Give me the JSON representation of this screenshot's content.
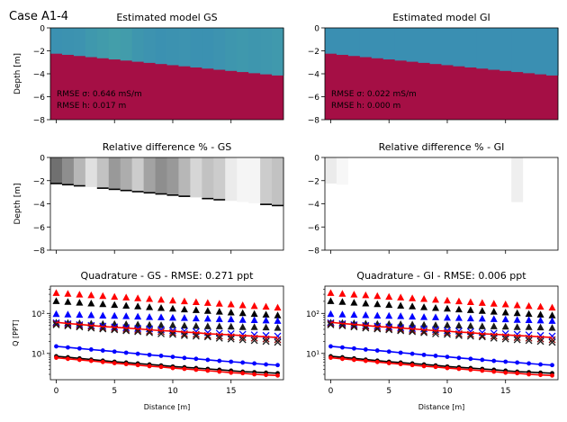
{
  "figure": {
    "label": "Case A1-4",
    "colors": {
      "bottom_layer": "#a50f45",
      "top_layer": "#3a8fb2",
      "top_layer_light": "#47a5a6",
      "series_red": "#ff0000",
      "series_black": "#000000",
      "series_blue": "#0000ff",
      "series_darkred": "#8b0000",
      "series_dark": "#1a1a1a"
    },
    "tick_labels": {
      "depth": [
        "0",
        "−2",
        "−4",
        "−6",
        "−8"
      ],
      "distance": [
        "0",
        "5",
        "10",
        "15"
      ],
      "q": [
        "10¹",
        "10²"
      ]
    }
  },
  "chart_data": [
    {
      "type": "heatmap",
      "title": "Estimated model GS",
      "ylabel": "Depth [m]",
      "xlabel": "",
      "ylim": [
        -8,
        0
      ],
      "xlim": [
        -0.5,
        19.5
      ],
      "boundary_depth": [
        -2.25,
        -2.35,
        -2.45,
        -2.55,
        -2.65,
        -2.75,
        -2.85,
        -2.95,
        -3.05,
        -3.15,
        -3.25,
        -3.35,
        -3.45,
        -3.55,
        -3.65,
        -3.75,
        -3.85,
        -3.95,
        -4.05,
        -4.15
      ],
      "top_shade": [
        0.1,
        0.15,
        0.2,
        0.4,
        0.55,
        0.7,
        0.6,
        0.3,
        0.2,
        0.1,
        0.15,
        0.2,
        0.1,
        0.1,
        0.2,
        0.3,
        0.4,
        0.3,
        0.35,
        0.45
      ],
      "annotations": [
        "RMSE σ: 0.646 mS/m",
        "RMSE h: 0.017 m"
      ]
    },
    {
      "type": "heatmap",
      "title": "Estimated model GI",
      "ylabel": "",
      "xlabel": "",
      "ylim": [
        -8,
        0
      ],
      "xlim": [
        -0.5,
        19.5
      ],
      "boundary_depth": [
        -2.25,
        -2.35,
        -2.45,
        -2.55,
        -2.65,
        -2.75,
        -2.85,
        -2.95,
        -3.05,
        -3.15,
        -3.25,
        -3.35,
        -3.45,
        -3.55,
        -3.65,
        -3.75,
        -3.85,
        -3.95,
        -4.05,
        -4.15
      ],
      "top_shade": [
        0,
        0,
        0,
        0,
        0,
        0,
        0,
        0,
        0,
        0,
        0,
        0,
        0,
        0,
        0,
        0,
        0,
        0,
        0,
        0
      ],
      "annotations": [
        "RMSE σ: 0.022 mS/m",
        "RMSE h: 0.000 m"
      ]
    },
    {
      "type": "heatmap",
      "title": "Relative difference % - GS",
      "ylabel": "Depth [m]",
      "xlabel": "",
      "ylim": [
        -8,
        0
      ],
      "xlim": [
        -0.5,
        19.5
      ],
      "boundary_depth": [
        -2.25,
        -2.35,
        -2.45,
        -2.55,
        -2.65,
        -2.75,
        -2.85,
        -2.95,
        -3.05,
        -3.15,
        -3.25,
        -3.35,
        -3.45,
        -3.55,
        -3.65,
        -3.75,
        -3.85,
        -3.95,
        -4.05,
        -4.15
      ],
      "diff_intensity": [
        0.7,
        0.55,
        0.35,
        0.15,
        0.3,
        0.5,
        0.4,
        0.25,
        0.45,
        0.55,
        0.5,
        0.35,
        0.2,
        0.3,
        0.25,
        0.1,
        0.05,
        0.05,
        0.25,
        0.3
      ]
    },
    {
      "type": "heatmap",
      "title": "Relative difference % - GI",
      "ylabel": "",
      "xlabel": "",
      "ylim": [
        -8,
        0
      ],
      "xlim": [
        -0.5,
        19.5
      ],
      "boundary_depth": [
        -2.25,
        -2.35,
        -2.45,
        -2.55,
        -2.65,
        -2.75,
        -2.85,
        -2.95,
        -3.05,
        -3.15,
        -3.25,
        -3.35,
        -3.45,
        -3.55,
        -3.65,
        -3.75,
        -3.85,
        -3.95,
        -4.05,
        -4.15
      ],
      "diff_intensity": [
        0.1,
        0.04,
        0,
        0,
        0,
        0,
        0,
        0,
        0,
        0,
        0,
        0,
        0,
        0,
        0,
        0,
        0.08,
        0,
        0,
        0
      ]
    },
    {
      "type": "scatter",
      "title": "Quadrature - GS - RMSE: 0.271 ppt",
      "xlabel": "Distance [m]",
      "ylabel": "Q [PPT]",
      "yscale": "log",
      "xlim": [
        -0.5,
        19.5
      ],
      "ylim": [
        2.2,
        480
      ],
      "x": [
        0,
        1,
        2,
        3,
        4,
        5,
        6,
        7,
        8,
        9,
        10,
        11,
        12,
        13,
        14,
        15,
        16,
        17,
        18,
        19
      ],
      "series": [
        {
          "marker": "triangle",
          "style": "markers",
          "color": "#ff0000",
          "values": [
            320,
            305,
            292,
            280,
            268,
            257,
            246,
            236,
            226,
            216,
            207,
            198,
            189,
            181,
            173,
            166,
            158,
            151,
            145,
            138
          ]
        },
        {
          "marker": "triangle",
          "style": "markers",
          "color": "#000000",
          "values": [
            200,
            191,
            183,
            175,
            168,
            161,
            154,
            148,
            141,
            135,
            130,
            124,
            119,
            114,
            109,
            104,
            100,
            96,
            92,
            88
          ]
        },
        {
          "marker": "triangle",
          "style": "markers",
          "color": "#0000ff",
          "values": [
            95,
            93,
            91,
            89,
            87,
            86,
            84,
            82,
            80,
            79,
            77,
            76,
            74,
            73,
            71,
            70,
            68,
            67,
            66,
            64
          ]
        },
        {
          "marker": "triangle",
          "style": "markers",
          "color": "#1a1a1a",
          "values": [
            58,
            57,
            56,
            55,
            54,
            54,
            53,
            52,
            51,
            50,
            50,
            49,
            48,
            47,
            47,
            46,
            45,
            45,
            44,
            43
          ]
        },
        {
          "marker": "x",
          "style": "markers",
          "color": "#0000ff",
          "values": [
            58,
            55,
            52,
            50,
            48,
            46,
            44,
            42,
            41,
            39,
            37,
            36,
            35,
            33,
            32,
            31,
            30,
            29,
            28,
            27
          ]
        },
        {
          "marker": "x",
          "style": "markers",
          "color": "#8b0000",
          "values": [
            55,
            52,
            49,
            47,
            44,
            42,
            40,
            38,
            36,
            35,
            33,
            31,
            30,
            28,
            27,
            26,
            25,
            24,
            23,
            22
          ]
        },
        {
          "marker": "x",
          "style": "markers",
          "color": "#1a1a1a",
          "values": [
            52,
            49,
            46,
            43,
            41,
            39,
            37,
            35,
            33,
            31,
            30,
            28,
            27,
            26,
            24,
            23,
            22,
            21,
            20,
            19
          ]
        },
        {
          "marker": "none",
          "style": "line",
          "color": "#ff0000",
          "values": [
            60,
            56,
            53,
            50,
            47,
            45,
            43,
            41,
            39,
            37,
            36,
            34,
            33,
            31,
            30,
            29,
            28,
            27,
            26,
            25
          ]
        },
        {
          "marker": "dot",
          "style": "line",
          "color": "#0000ff",
          "values": [
            15,
            14.1,
            13.3,
            12.5,
            11.8,
            11.1,
            10.4,
            9.8,
            9.2,
            8.7,
            8.2,
            7.7,
            7.3,
            6.9,
            6.5,
            6.2,
            5.9,
            5.6,
            5.3,
            5.1
          ]
        },
        {
          "marker": "dot",
          "style": "line",
          "color": "#000000",
          "values": [
            8.5,
            8.0,
            7.5,
            7.0,
            6.6,
            6.2,
            5.9,
            5.6,
            5.3,
            5.0,
            4.7,
            4.5,
            4.3,
            4.1,
            3.9,
            3.7,
            3.5,
            3.4,
            3.3,
            3.2
          ]
        },
        {
          "marker": "dot",
          "style": "line",
          "color": "#ff0000",
          "values": [
            7.8,
            7.3,
            6.9,
            6.5,
            6.1,
            5.7,
            5.4,
            5.1,
            4.8,
            4.6,
            4.3,
            4.1,
            3.9,
            3.7,
            3.5,
            3.3,
            3.2,
            3.0,
            2.9,
            2.8
          ]
        }
      ]
    },
    {
      "type": "scatter",
      "title": "Quadrature - GI - RMSE: 0.006 ppt",
      "xlabel": "Distance [m]",
      "ylabel": "",
      "yscale": "log",
      "xlim": [
        -0.5,
        19.5
      ],
      "ylim": [
        2.2,
        480
      ],
      "x": [
        0,
        1,
        2,
        3,
        4,
        5,
        6,
        7,
        8,
        9,
        10,
        11,
        12,
        13,
        14,
        15,
        16,
        17,
        18,
        19
      ],
      "series": [
        {
          "marker": "triangle",
          "style": "markers",
          "color": "#ff0000",
          "values": [
            320,
            305,
            292,
            280,
            268,
            257,
            246,
            236,
            226,
            216,
            207,
            198,
            189,
            181,
            173,
            166,
            158,
            151,
            145,
            138
          ]
        },
        {
          "marker": "triangle",
          "style": "markers",
          "color": "#000000",
          "values": [
            200,
            191,
            183,
            175,
            168,
            161,
            154,
            148,
            141,
            135,
            130,
            124,
            119,
            114,
            109,
            104,
            100,
            96,
            92,
            88
          ]
        },
        {
          "marker": "triangle",
          "style": "markers",
          "color": "#0000ff",
          "values": [
            95,
            93,
            91,
            89,
            87,
            86,
            84,
            82,
            80,
            79,
            77,
            76,
            74,
            73,
            71,
            70,
            68,
            67,
            66,
            64
          ]
        },
        {
          "marker": "triangle",
          "style": "markers",
          "color": "#1a1a1a",
          "values": [
            58,
            57,
            56,
            55,
            54,
            54,
            53,
            52,
            51,
            50,
            50,
            49,
            48,
            47,
            47,
            46,
            45,
            45,
            44,
            43
          ]
        },
        {
          "marker": "x",
          "style": "markers",
          "color": "#0000ff",
          "values": [
            58,
            55,
            52,
            50,
            48,
            46,
            44,
            42,
            41,
            39,
            37,
            36,
            35,
            33,
            32,
            31,
            30,
            29,
            28,
            27
          ]
        },
        {
          "marker": "x",
          "style": "markers",
          "color": "#8b0000",
          "values": [
            55,
            52,
            49,
            47,
            44,
            42,
            40,
            38,
            36,
            35,
            33,
            31,
            30,
            28,
            27,
            26,
            25,
            24,
            23,
            22
          ]
        },
        {
          "marker": "x",
          "style": "markers",
          "color": "#1a1a1a",
          "values": [
            52,
            49,
            46,
            43,
            41,
            39,
            37,
            35,
            33,
            31,
            30,
            28,
            27,
            26,
            24,
            23,
            22,
            21,
            20,
            19
          ]
        },
        {
          "marker": "none",
          "style": "line",
          "color": "#ff0000",
          "values": [
            60,
            56,
            53,
            50,
            47,
            45,
            43,
            41,
            39,
            37,
            36,
            34,
            33,
            31,
            30,
            29,
            28,
            27,
            26,
            25
          ]
        },
        {
          "marker": "dot",
          "style": "line",
          "color": "#0000ff",
          "values": [
            15,
            14.1,
            13.3,
            12.5,
            11.8,
            11.1,
            10.4,
            9.8,
            9.2,
            8.7,
            8.2,
            7.7,
            7.3,
            6.9,
            6.5,
            6.2,
            5.9,
            5.6,
            5.3,
            5.1
          ]
        },
        {
          "marker": "dot",
          "style": "line",
          "color": "#000000",
          "values": [
            8.5,
            8.0,
            7.5,
            7.0,
            6.6,
            6.2,
            5.9,
            5.6,
            5.3,
            5.0,
            4.7,
            4.5,
            4.3,
            4.1,
            3.9,
            3.7,
            3.5,
            3.4,
            3.3,
            3.2
          ]
        },
        {
          "marker": "dot",
          "style": "line",
          "color": "#ff0000",
          "values": [
            7.8,
            7.3,
            6.9,
            6.5,
            6.1,
            5.7,
            5.4,
            5.1,
            4.8,
            4.6,
            4.3,
            4.1,
            3.9,
            3.7,
            3.5,
            3.3,
            3.2,
            3.0,
            2.9,
            2.8
          ]
        }
      ]
    }
  ]
}
